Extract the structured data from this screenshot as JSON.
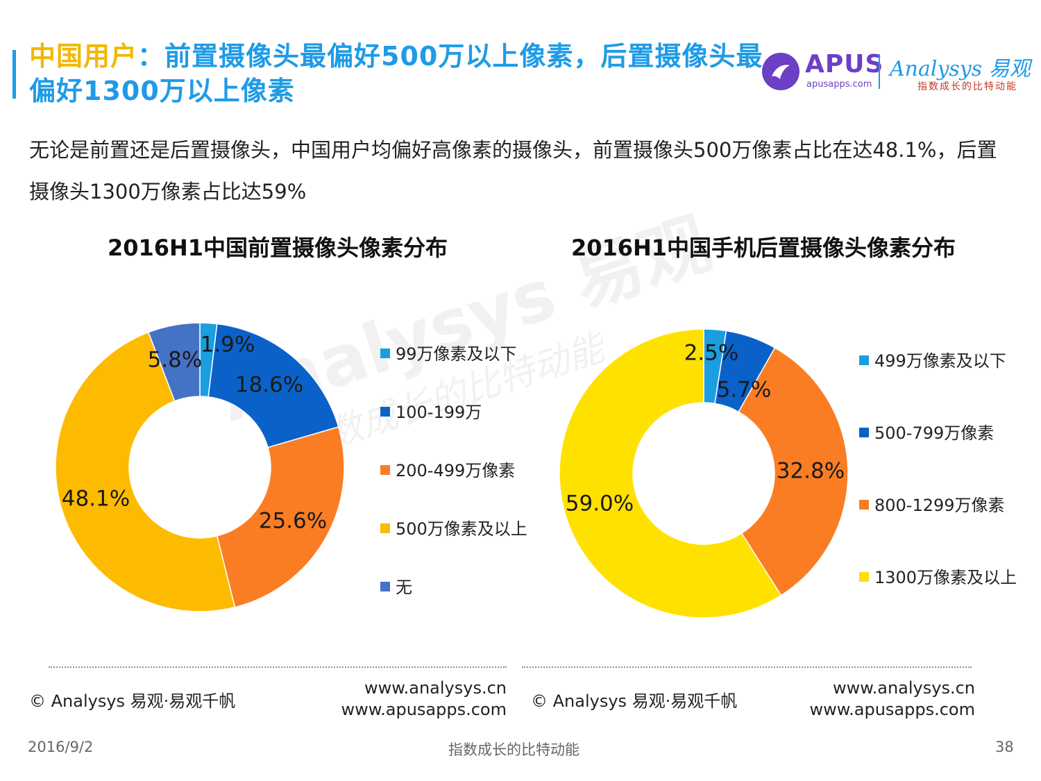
{
  "header": {
    "title_lead": "中国用户",
    "title_rest": "：前置摄像头最偏好500万以上像素，后置摄像头最偏好1300万以上像素",
    "subtitle": "无论是前置还是后置摄像头，中国用户均偏好高像素的摄像头，前置摄像头500万像素占比在达48.1%，后置摄像头1300万像素占比达59%"
  },
  "logos": {
    "apus": "APUS",
    "apus_sub": "apusapps.com",
    "analysys": "Analysys 易观",
    "analysys_sub": "指数成长的比特动能"
  },
  "watermark": {
    "main": "Analysys 易观",
    "sub": "指数成长的比特动能"
  },
  "chart_data": [
    {
      "type": "pie",
      "donut": true,
      "title": "2016H1中国前置摄像头像素分布",
      "categories": [
        "99万像素及以下",
        "100-199万",
        "200-499万像素",
        "500万像素及以上",
        "无"
      ],
      "values": [
        1.9,
        18.6,
        25.6,
        48.1,
        5.8
      ],
      "data_labels": [
        "1.9%",
        "18.6%",
        "25.6%",
        "48.1%",
        "5.8%"
      ],
      "colors": [
        "#1a9ee0",
        "#0a62c9",
        "#fa7d24",
        "#fdbb00",
        "#4472c4"
      ],
      "legend": "right"
    },
    {
      "type": "pie",
      "donut": true,
      "title": "2016H1中国手机后置摄像头像素分布",
      "categories": [
        "499万像素及以下",
        "500-799万像素",
        "800-1299万像素",
        "1300万像素及以上"
      ],
      "values": [
        2.5,
        5.7,
        32.8,
        59.0
      ],
      "data_labels": [
        "2.5%",
        "5.7%",
        "32.8%",
        "59.0%"
      ],
      "colors": [
        "#1a9ee0",
        "#0a62c9",
        "#fa7d24",
        "#ffe100"
      ],
      "legend": "right"
    }
  ],
  "sources": {
    "left": {
      "copyright": "© Analysys 易观·易观千帆",
      "site1": "www.analysys.cn",
      "site2": "www.apusapps.com"
    },
    "right": {
      "copyright": "© Analysys 易观·易观千帆",
      "site1": "www.analysys.cn",
      "site2": "www.apusapps.com"
    }
  },
  "footer": {
    "date": "2016/9/2",
    "tagline": "指数成长的比特动能",
    "page_number": "38"
  }
}
